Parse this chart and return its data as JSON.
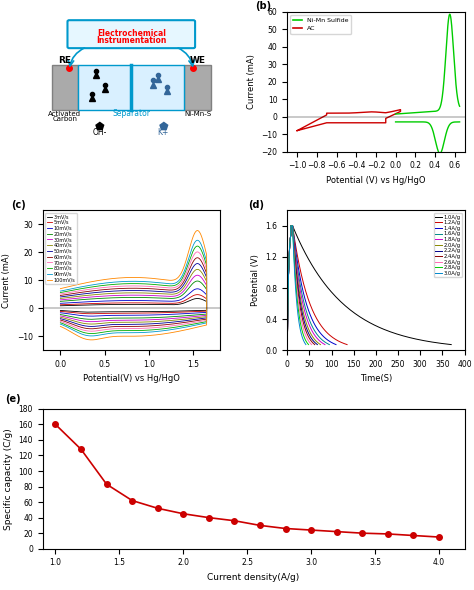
{
  "panel_b": {
    "ylim": [
      -20,
      60
    ],
    "xlim": [
      -1.1,
      0.7
    ],
    "yticks": [
      -20,
      -10,
      0,
      10,
      20,
      30,
      40,
      50,
      60
    ],
    "xticks": [
      -1.0,
      -0.8,
      -0.6,
      -0.4,
      -0.2,
      0.0,
      0.2,
      0.4,
      0.6
    ],
    "xlabel": "Potential (V) vs Hg/HgO",
    "ylabel": "Current (mA)",
    "legend": [
      "Ni-Mn Sulfide",
      "AC"
    ],
    "legend_colors": [
      "#00cc00",
      "#cc0000"
    ]
  },
  "panel_c": {
    "ylim": [
      -15,
      35
    ],
    "xlim": [
      -0.2,
      1.8
    ],
    "yticks": [
      -15,
      -10,
      -5,
      0,
      5,
      10,
      15,
      20,
      25,
      30,
      35
    ],
    "xticks": [
      -0.2,
      0.0,
      0.2,
      0.4,
      0.6,
      0.8,
      1.0,
      1.2,
      1.4,
      1.6,
      1.8
    ],
    "xlabel": "Potential(V) vs Hg/HgO",
    "ylabel": "Current (mA)",
    "scan_rates": [
      "3mV/s",
      "5mV/s",
      "10mV/s",
      "20mV/s",
      "30mV/s",
      "40mV/s",
      "50mV/s",
      "60mV/s",
      "70mV/s",
      "80mV/s",
      "90mV/s",
      "100mV/s"
    ],
    "scan_colors": [
      "#000000",
      "#cc0000",
      "#0000cc",
      "#008800",
      "#cc00cc",
      "#888800",
      "#000099",
      "#8b0000",
      "#ff69b4",
      "#00aa00",
      "#0099cc",
      "#ff8800"
    ]
  },
  "panel_d": {
    "ylim": [
      0.0,
      1.8
    ],
    "xlim": [
      0,
      400
    ],
    "yticks": [
      0.0,
      0.4,
      0.8,
      1.2,
      1.6
    ],
    "xticks": [
      0,
      50,
      100,
      150,
      200,
      250,
      300,
      350,
      400
    ],
    "xlabel": "Time(S)",
    "ylabel": "Potential (V)",
    "current_densities": [
      "1.0A/g",
      "1.2A/g",
      "1.4A/g",
      "1.6A/g",
      "1.8A/g",
      "2.0A/g",
      "2.2A/g",
      "2.4A/g",
      "2.6A/g",
      "2.8A/g",
      "3.0A/g"
    ],
    "cd_colors": [
      "#000000",
      "#cc0000",
      "#0000cc",
      "#008888",
      "#cc00cc",
      "#888800",
      "#000088",
      "#8b0000",
      "#ff69b4",
      "#00cc00",
      "#0088cc"
    ]
  },
  "panel_e": {
    "xlim": [
      0.9,
      4.2
    ],
    "ylim": [
      0,
      180
    ],
    "yticks": [
      0,
      20,
      40,
      60,
      80,
      100,
      120,
      140,
      160,
      180
    ],
    "xticks": [
      1.0,
      1.5,
      2.0,
      2.5,
      3.0,
      3.5,
      4.0
    ],
    "xlabel": "Current density(A/g)",
    "ylabel": "Specific capacity (C/g)",
    "x_data": [
      1.0,
      1.2,
      1.4,
      1.6,
      1.8,
      2.0,
      2.2,
      2.4,
      2.6,
      2.8,
      3.0,
      3.2,
      3.4,
      3.6,
      3.8,
      4.0
    ],
    "y_data": [
      160,
      128,
      83,
      62,
      52,
      45,
      40,
      36,
      30,
      26,
      24,
      22,
      20,
      19,
      17,
      15
    ],
    "color": "#cc0000"
  }
}
